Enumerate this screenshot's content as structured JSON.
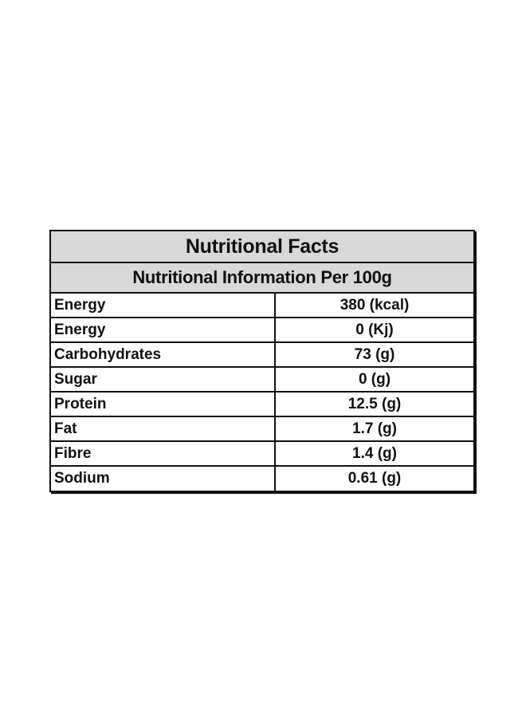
{
  "table": {
    "title": "Nutritional Facts",
    "subtitle": "Nutritional Information Per 100g",
    "rows": [
      {
        "nutrient": "Energy",
        "value": "380 (kcal)"
      },
      {
        "nutrient": "Energy",
        "value": "0 (Kj)"
      },
      {
        "nutrient": "Carbohydrates",
        "value": "73 (g)"
      },
      {
        "nutrient": "Sugar",
        "value": "0 (g)"
      },
      {
        "nutrient": "Protein",
        "value": "12.5 (g)"
      },
      {
        "nutrient": "Fat",
        "value": "1.7 (g)"
      },
      {
        "nutrient": "Fibre",
        "value": "1.4 (g)"
      },
      {
        "nutrient": "Sodium",
        "value": "0.61 (g)"
      }
    ]
  },
  "colors": {
    "header_background": "#d9d9d9",
    "border": "#111111",
    "background": "#ffffff"
  }
}
